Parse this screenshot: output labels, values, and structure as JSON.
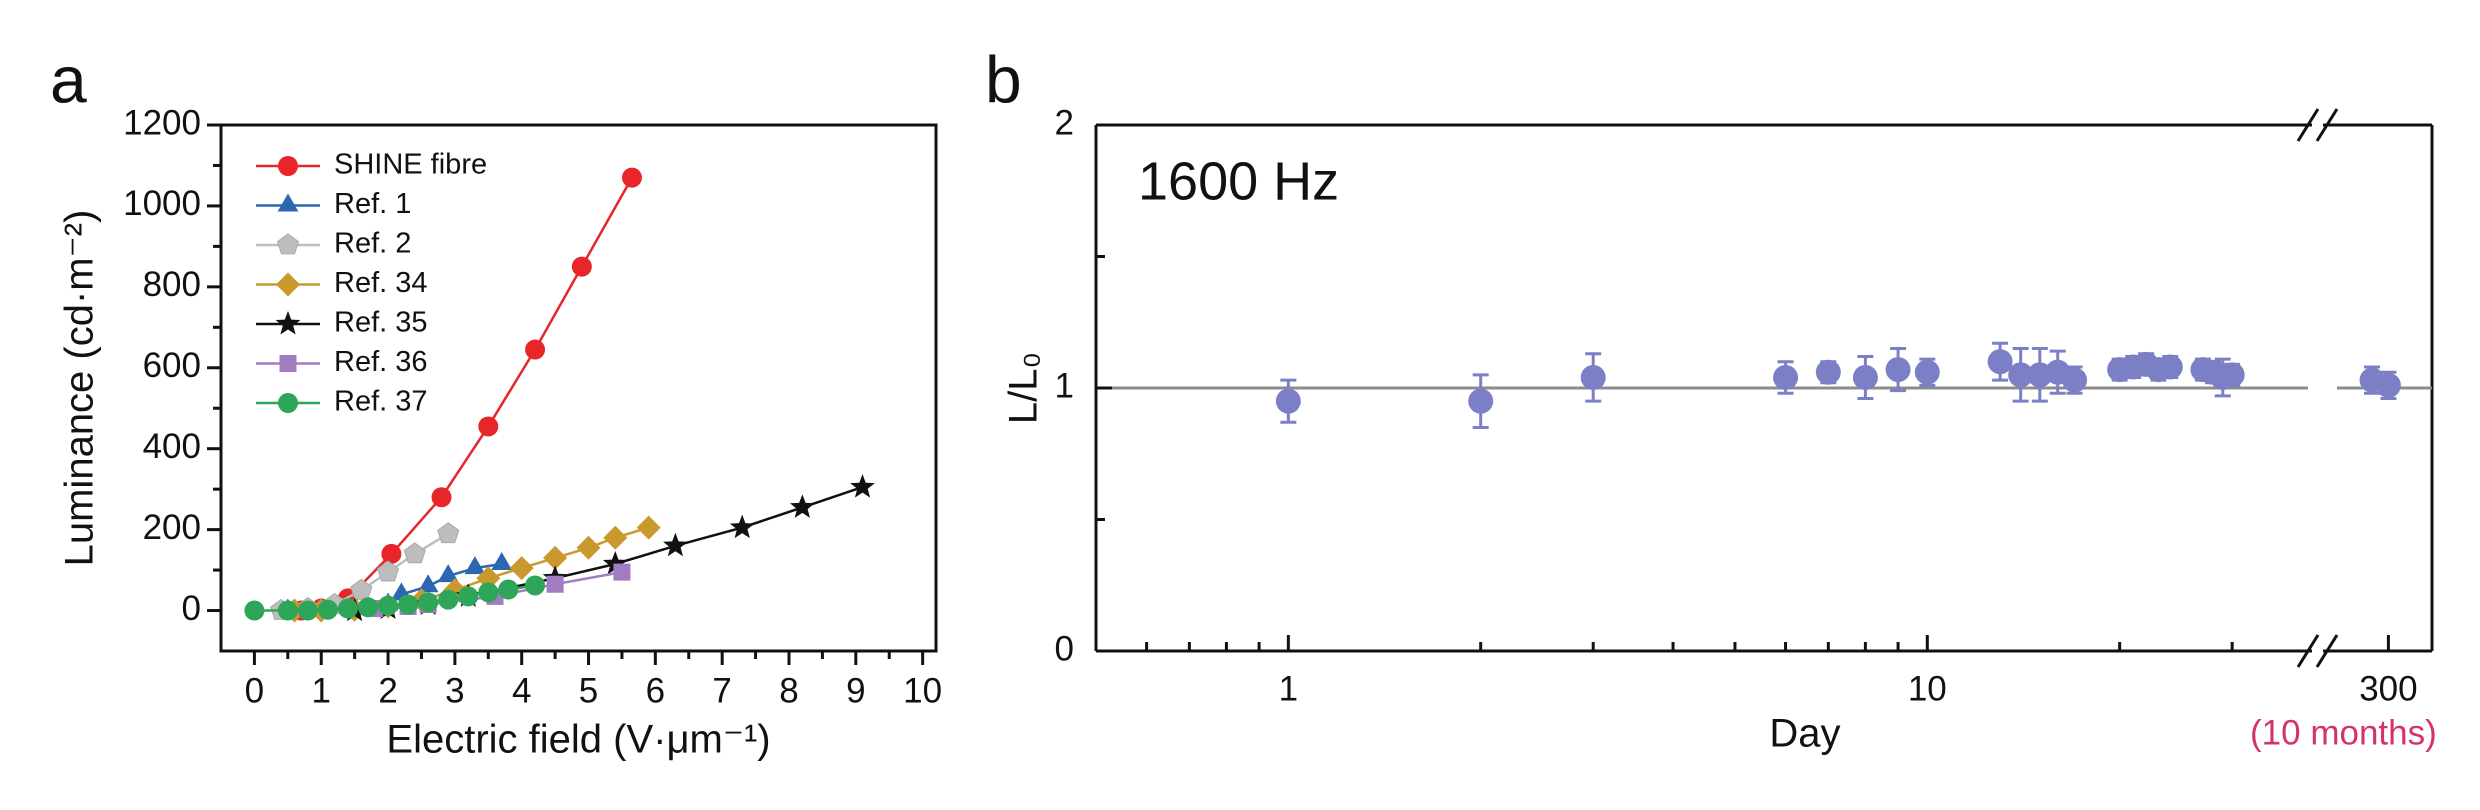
{
  "chart_data": [
    {
      "type": "line",
      "panel": "a",
      "xlabel": "Electric field (V·μm⁻¹)",
      "ylabel": "Luminance (cd·m⁻²)",
      "xlim": [
        -0.5,
        10.2
      ],
      "ylim": [
        -100,
        1200
      ],
      "xticks": [
        0,
        1,
        2,
        3,
        4,
        5,
        6,
        7,
        8,
        9,
        10
      ],
      "yticks": [
        0,
        200,
        400,
        600,
        800,
        1000,
        1200
      ],
      "xminorticks": [
        0.5,
        1.5,
        2.5,
        3.5,
        4.5,
        5.5,
        6.5,
        7.5,
        8.5,
        9.5
      ],
      "yminorticks": [
        100,
        300,
        500,
        700,
        900,
        1100
      ],
      "legend": "upper left",
      "series": [
        {
          "name": "SHINE fibre",
          "color": "#e8262a",
          "marker": "circle",
          "x": [
            0.7,
            1.0,
            1.4,
            2.05,
            2.8,
            3.5,
            4.2,
            4.9,
            5.65
          ],
          "values": [
            0,
            5,
            30,
            140,
            280,
            455,
            645,
            850,
            1070
          ]
        },
        {
          "name": "Ref. 1",
          "color": "#2e67b1",
          "marker": "triangle",
          "x": [
            0.5,
            1.0,
            1.5,
            2.0,
            2.2,
            2.6,
            2.9,
            3.3,
            3.7
          ],
          "values": [
            0,
            2,
            5,
            15,
            40,
            60,
            85,
            105,
            115
          ]
        },
        {
          "name": "Ref. 2",
          "color": "#bdbdbd",
          "marker": "pentagon",
          "x": [
            0.4,
            0.8,
            1.2,
            1.6,
            2.0,
            2.4,
            2.9
          ],
          "values": [
            0,
            5,
            15,
            50,
            95,
            140,
            190
          ]
        },
        {
          "name": "Ref. 34",
          "color": "#c9992e",
          "marker": "diamond",
          "x": [
            0.6,
            1.0,
            1.5,
            2.0,
            2.5,
            3.0,
            3.5,
            4.0,
            4.5,
            5.0,
            5.4,
            5.9
          ],
          "values": [
            0,
            0,
            2,
            10,
            25,
            50,
            80,
            105,
            130,
            155,
            180,
            205
          ]
        },
        {
          "name": "Ref. 35",
          "color": "#111111",
          "marker": "star",
          "x": [
            1.5,
            2.0,
            2.6,
            3.2,
            4.5,
            5.4,
            6.3,
            7.3,
            8.2,
            9.1
          ],
          "values": [
            0,
            5,
            15,
            35,
            80,
            115,
            160,
            205,
            255,
            305
          ]
        },
        {
          "name": "Ref. 36",
          "color": "#a07cc0",
          "marker": "square",
          "x": [
            1.8,
            2.3,
            2.6,
            3.6,
            4.5,
            5.5
          ],
          "values": [
            5,
            10,
            15,
            35,
            65,
            95
          ]
        },
        {
          "name": "Ref. 37",
          "color": "#2da65a",
          "marker": "circle",
          "x": [
            0,
            0.5,
            0.8,
            1.1,
            1.4,
            1.7,
            2.0,
            2.3,
            2.6,
            2.9,
            3.2,
            3.5,
            3.8,
            4.2
          ],
          "values": [
            0,
            0,
            0,
            2,
            5,
            8,
            12,
            15,
            20,
            27,
            35,
            45,
            52,
            62
          ]
        }
      ]
    },
    {
      "type": "scatter",
      "panel": "b",
      "xlabel": "Day",
      "ylabel": "L/L₀",
      "annotation": "1600 Hz",
      "x2annotation": "(10 months)",
      "xscale": "log",
      "xlim": [
        0.5,
        40
      ],
      "x2lim": [
        240,
        340
      ],
      "xticks": [
        1,
        10
      ],
      "x2ticks": [
        300
      ],
      "xminorticks": [
        0.6,
        0.7,
        0.8,
        0.9,
        2,
        3,
        4,
        5,
        6,
        7,
        8,
        9,
        20,
        30
      ],
      "ylim": [
        0,
        2
      ],
      "yticks": [
        0,
        1,
        2
      ],
      "yminorticks": [
        0.5,
        1.5
      ],
      "hline": 1,
      "hline_color": "#8c8c8c",
      "color": "#7b7fc6",
      "annotation_color": "#d6306e",
      "x": [
        1,
        2,
        3,
        6,
        7,
        8,
        9,
        10,
        13,
        14,
        15,
        16,
        17,
        20,
        21,
        22,
        23,
        24,
        27,
        28,
        29,
        30,
        285,
        300
      ],
      "values": [
        0.95,
        0.95,
        1.04,
        1.04,
        1.06,
        1.04,
        1.07,
        1.06,
        1.1,
        1.05,
        1.05,
        1.06,
        1.03,
        1.07,
        1.08,
        1.09,
        1.07,
        1.08,
        1.07,
        1.06,
        1.04,
        1.05,
        1.03,
        1.01
      ],
      "errors": [
        0.08,
        0.1,
        0.09,
        0.06,
        0.04,
        0.08,
        0.08,
        0.05,
        0.07,
        0.1,
        0.1,
        0.08,
        0.05,
        0.04,
        0.04,
        0.04,
        0.04,
        0.04,
        0.04,
        0.04,
        0.07,
        0.04,
        0.05,
        0.05
      ]
    }
  ]
}
